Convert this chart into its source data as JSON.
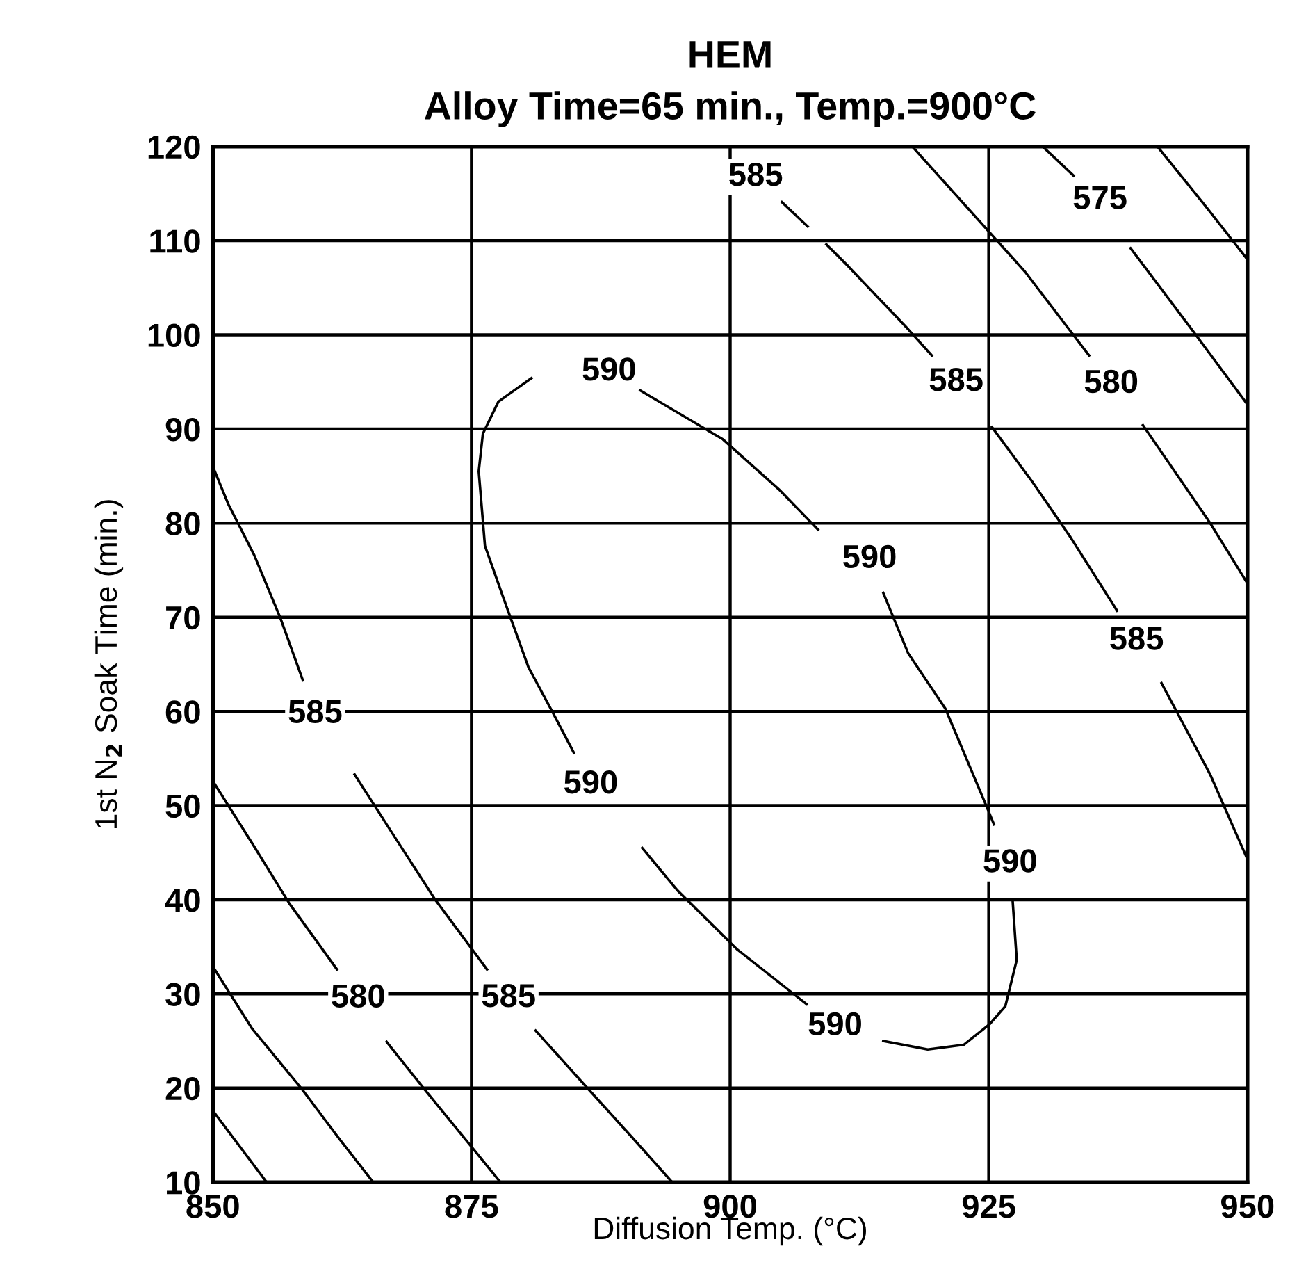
{
  "chart_data": {
    "type": "line",
    "title": "HEM",
    "subtitle": "Alloy Time=65 min., Temp.=900°C",
    "xlabel": "Diffusion Temp. (°C)",
    "ylabel": "1st N$_{2}$ Soak Time (min.)",
    "xlim": [
      850,
      950
    ],
    "xticks": [
      850,
      875,
      900,
      925,
      950
    ],
    "ylim": [
      10,
      120
    ],
    "yticks": [
      10,
      20,
      30,
      40,
      50,
      60,
      70,
      80,
      90,
      100,
      110,
      120
    ],
    "grid": true,
    "legend": false,
    "marker": "none",
    "line_style": "solid",
    "series": [
      {
        "name": "585",
        "color": "#000000",
        "x": [
          850,
          851.5,
          854,
          856.5,
          858.7
        ],
        "values": [
          86,
          82,
          76.6,
          70,
          63.3
        ]
      },
      {
        "name": "585",
        "color": "#000000",
        "x": [
          863.7,
          867.5,
          871.5,
          876.5
        ],
        "values": [
          53.3,
          46.8,
          40,
          32.6
        ]
      },
      {
        "color": "#000000",
        "x": [
          866.8,
          870.5,
          874.9,
          877.8
        ],
        "values": [
          24.9,
          19.8,
          13.9,
          10
        ]
      },
      {
        "name": "580",
        "color": "#000000",
        "x": [
          850,
          853.8,
          857.4,
          862
        ],
        "values": [
          52.6,
          46,
          39.6,
          32.6
        ]
      },
      {
        "color": "#000000",
        "x": [
          850,
          853.8,
          858.6,
          862.3,
          865.5
        ],
        "values": [
          32.9,
          26.3,
          19.9,
          14.5,
          10
        ]
      },
      {
        "color": "#000000",
        "x": [
          850,
          855.2
        ],
        "values": [
          17.6,
          10
        ]
      },
      {
        "color": "#000000",
        "x": [
          881.2,
          886.2,
          890.5,
          894.4
        ],
        "values": [
          26.1,
          20,
          14.8,
          10
        ]
      },
      {
        "name": "590",
        "color": "#000000",
        "x": [
          880.8,
          877.6,
          876.1,
          875.7,
          876.3,
          878.2,
          880.5,
          882.8,
          884.9
        ],
        "values": [
          95.4,
          92.9,
          89.5,
          85.5,
          77.6,
          71.7,
          64.7,
          60,
          55.6
        ]
      },
      {
        "name": "590",
        "color": "#000000",
        "x": [
          891.5,
          894.9,
          900.7,
          907.4
        ],
        "values": [
          45.5,
          41,
          34.7,
          28.9
        ]
      },
      {
        "name": "590",
        "color": "#000000",
        "x": [
          914.8,
          919.1,
          922.6,
          925.1,
          926.6,
          927.7,
          927.3
        ],
        "values": [
          25,
          24.1,
          24.6,
          26.8,
          28.7,
          33.6,
          40
        ]
      },
      {
        "name": "590",
        "color": "#000000",
        "x": [
          925.5,
          924.6,
          920.8,
          917.2,
          914.8
        ],
        "values": [
          48,
          50.4,
          60.3,
          66.2,
          72.6
        ]
      },
      {
        "name": "590",
        "color": "#000000",
        "x": [
          908.5,
          904.7,
          899.3,
          891.3
        ],
        "values": [
          79.3,
          83.6,
          88.9,
          94.1
        ]
      },
      {
        "name": "585",
        "color": "#000000",
        "x": [
          907.5,
          905
        ],
        "values": [
          111.5,
          114.1
        ]
      },
      {
        "name": "585",
        "color": "#000000",
        "x": [
          909.3,
          911.4,
          917.2,
          919.5
        ],
        "values": [
          109.6,
          107.3,
          100.6,
          97.8
        ]
      },
      {
        "name": "580",
        "color": "#000000",
        "x": [
          917.6,
          924.9,
          928.5,
          934.7
        ],
        "values": [
          120,
          111.1,
          106.7,
          97.8
        ]
      },
      {
        "name": "575",
        "color": "#000000",
        "x": [
          930.2,
          933.2
        ],
        "values": [
          120,
          116.9
        ]
      },
      {
        "color": "#000000",
        "x": [
          941.3,
          946,
          950
        ],
        "values": [
          120,
          113.6,
          108
        ]
      },
      {
        "color": "#000000",
        "x": [
          938.7,
          944.6,
          950
        ],
        "values": [
          109.2,
          100.6,
          92.6
        ]
      },
      {
        "name": "585",
        "color": "#000000",
        "x": [
          925.3,
          929.2,
          932.9,
          937.4
        ],
        "values": [
          90.2,
          84.4,
          78.5,
          70.7
        ]
      },
      {
        "color": "#000000",
        "x": [
          939.9,
          946.4,
          950
        ],
        "values": [
          90.4,
          80,
          73.6
        ]
      },
      {
        "color": "#000000",
        "x": [
          941.7,
          946.4,
          950
        ],
        "values": [
          63,
          53.3,
          44.3
        ]
      }
    ]
  }
}
